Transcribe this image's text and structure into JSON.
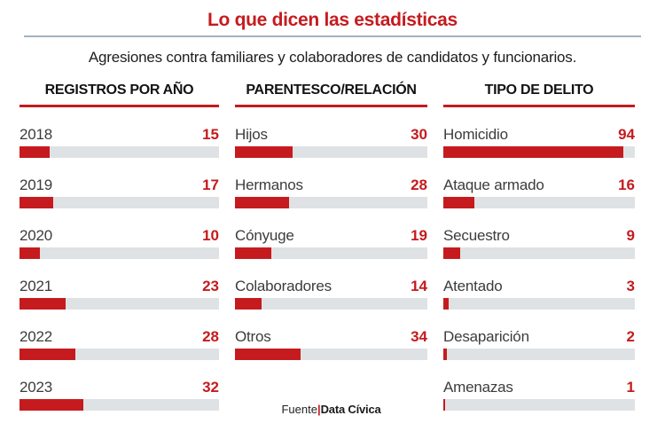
{
  "title": "Lo que dicen las estadísticas",
  "subtitle": "Agresiones contra familiares y colaboradores de candidatos y funcionarios.",
  "source": {
    "prefix": "Fuente",
    "separator": "|",
    "name": "Data Cívica"
  },
  "colors": {
    "accent_red": "#c51b1e",
    "bar_track_gray": "#dfe2e4",
    "divider_blue_gray": "#a3b2be",
    "label_gray": "#3c3c3c",
    "header_black": "#121212"
  },
  "chart_data": [
    {
      "type": "bar",
      "orientation": "horizontal",
      "title": "REGISTROS POR AÑO",
      "categories": [
        "2018",
        "2019",
        "2020",
        "2021",
        "2022",
        "2023"
      ],
      "values": [
        15,
        17,
        10,
        23,
        28,
        32
      ],
      "xlim": [
        0,
        100
      ],
      "grid": false,
      "value_labels": "right-aligned red bold"
    },
    {
      "type": "bar",
      "orientation": "horizontal",
      "title": "PARENTESCO/RELACIÓN",
      "categories": [
        "Hijos",
        "Hermanos",
        "Cónyuge",
        "Colaboradores",
        "Otros"
      ],
      "values": [
        30,
        28,
        19,
        14,
        34
      ],
      "xlim": [
        0,
        100
      ],
      "grid": false,
      "value_labels": "right-aligned red bold"
    },
    {
      "type": "bar",
      "orientation": "horizontal",
      "title": "TIPO DE DELITO",
      "categories": [
        "Homicidio",
        "Ataque armado",
        "Secuestro",
        "Atentado",
        "Desaparición",
        "Amenazas"
      ],
      "values": [
        94,
        16,
        9,
        3,
        2,
        1
      ],
      "xlim": [
        0,
        100
      ],
      "grid": false,
      "value_labels": "right-aligned red bold"
    }
  ]
}
